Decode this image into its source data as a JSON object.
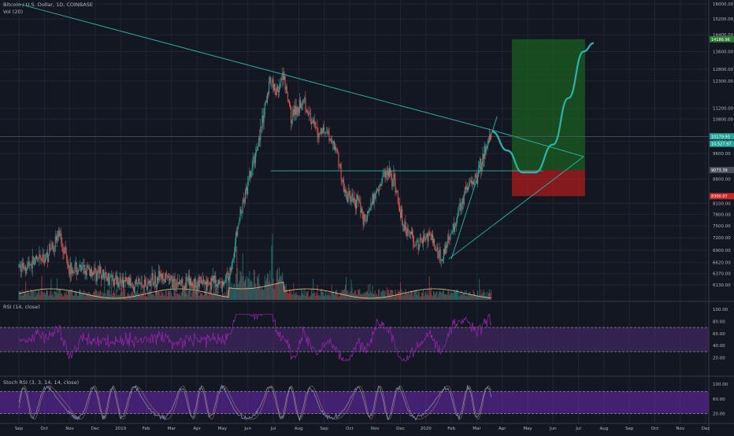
{
  "header": {
    "symbol": "Bitcoin / U.S. Dollar, 1D, COINBASE",
    "volume_label": "Vol (20)"
  },
  "rsi_panel": {
    "title": "RSI (14, close)",
    "ticks": [
      "100.00",
      "80.00",
      "60.00",
      "40.00",
      "20.00"
    ]
  },
  "stoch_panel": {
    "title": "Stoch RSI (3, 3, 14, 14, close)",
    "ticks": [
      "100.00",
      "60.00",
      "20.00"
    ]
  },
  "price_tags": {
    "target": "14186.96",
    "current": "10179.93",
    "current_sub": "10,527.97",
    "entry": "9073.39",
    "stop": "8300.07"
  },
  "colors": {
    "background": "#131722",
    "grid": "#1f2433",
    "up": "#26a69a",
    "down": "#ef5350",
    "trendline": "#2bb5a8",
    "rsi": "#9c27b0",
    "rsi_band": "#4a2a6e",
    "stoch_k": "#7e88b5",
    "stoch_band": "#6a2bb0",
    "profit_zone": "#1b5e20",
    "loss_zone": "#b71c1c",
    "volume_ma": "#e8c88d"
  },
  "chart_data": {
    "type": "candlestick",
    "y_scale": "log",
    "ylim": [
      6000,
      16000
    ],
    "y_ticks": [
      "16000.00",
      "15200.00",
      "14400.00",
      "13600.00",
      "12800.00",
      "12300.00",
      "11200.00",
      "10800.00",
      "10000.00",
      "9600.00",
      "8800.00",
      "8100.00",
      "7800.00",
      "7500.00",
      "7200.00",
      "6900.00",
      "6620.00",
      "6370.00",
      "6130.00"
    ],
    "x_tick_labels": [
      "Sep",
      "Oct",
      "Nov",
      "Dec",
      "2019",
      "Feb",
      "Mar",
      "Apr",
      "May",
      "Jun",
      "Jul",
      "Aug",
      "Sep",
      "Oct",
      "Nov",
      "Dec",
      "2020",
      "Feb",
      "Mar",
      "Apr",
      "May",
      "Jun",
      "Jul",
      "Aug",
      "Sep",
      "Oct",
      "Nov",
      "Dec"
    ],
    "price_path": [
      [
        0,
        6500
      ],
      [
        1,
        6700
      ],
      [
        1.6,
        7300
      ],
      [
        2,
        6500
      ],
      [
        3,
        6400
      ],
      [
        3.5,
        6300
      ],
      [
        4,
        6200
      ],
      [
        5,
        6150
      ],
      [
        5.5,
        6300
      ],
      [
        6,
        6200
      ],
      [
        7,
        6150
      ],
      [
        7.5,
        6200
      ],
      [
        8,
        6150
      ],
      [
        8.3,
        6400
      ],
      [
        8.7,
        7800
      ],
      [
        9,
        8600
      ],
      [
        9.3,
        9600
      ],
      [
        9.6,
        10800
      ],
      [
        9.9,
        12500
      ],
      [
        10.1,
        11800
      ],
      [
        10.4,
        12400
      ],
      [
        10.7,
        10900
      ],
      [
        11,
        11300
      ],
      [
        11.2,
        11700
      ],
      [
        11.5,
        10600
      ],
      [
        11.8,
        10300
      ],
      [
        12,
        10500
      ],
      [
        12.2,
        10200
      ],
      [
        12.5,
        9700
      ],
      [
        12.8,
        8400
      ],
      [
        13.1,
        8200
      ],
      [
        13.4,
        8100
      ],
      [
        13.6,
        7600
      ],
      [
        13.8,
        8000
      ],
      [
        14.2,
        8700
      ],
      [
        14.5,
        9100
      ],
      [
        14.8,
        8600
      ],
      [
        15.1,
        7500
      ],
      [
        15.4,
        7300
      ],
      [
        15.7,
        7000
      ],
      [
        16,
        7300
      ],
      [
        16.3,
        7100
      ],
      [
        16.6,
        6700
      ],
      [
        16.9,
        7200
      ],
      [
        17.2,
        7700
      ],
      [
        17.5,
        8400
      ],
      [
        17.8,
        8700
      ],
      [
        18,
        8900
      ],
      [
        18.3,
        9600
      ],
      [
        18.5,
        10100
      ],
      [
        18.6,
        10350
      ]
    ],
    "projection": [
      [
        18.6,
        10350
      ],
      [
        19.2,
        9700
      ],
      [
        19.8,
        9000
      ],
      [
        20.3,
        9000
      ],
      [
        21,
        9900
      ],
      [
        21.6,
        11600
      ],
      [
        22.2,
        13600
      ],
      [
        22.6,
        14000
      ]
    ],
    "trendlines": [
      {
        "from": [
          0,
          16000
        ],
        "to": [
          18.6,
          10400
        ]
      },
      {
        "from": [
          9.9,
          9050
        ],
        "to": [
          20.6,
          9050
        ]
      },
      {
        "from": [
          16.9,
          6700
        ],
        "to": [
          22.2,
          9500
        ]
      },
      {
        "from": [
          18.6,
          10400
        ],
        "to": [
          22.2,
          9500
        ]
      },
      {
        "from": [
          17.0,
          6700
        ],
        "to": [
          18.8,
          10900
        ]
      }
    ],
    "long_position": {
      "x_range": [
        20.0,
        23.0
      ],
      "target": 14186.96,
      "entry": 9073.39,
      "stop": 8300.07
    },
    "rsi_range": [
      0,
      100
    ],
    "rsi_band": [
      30,
      70
    ],
    "stoch_band": [
      20,
      80
    ]
  }
}
